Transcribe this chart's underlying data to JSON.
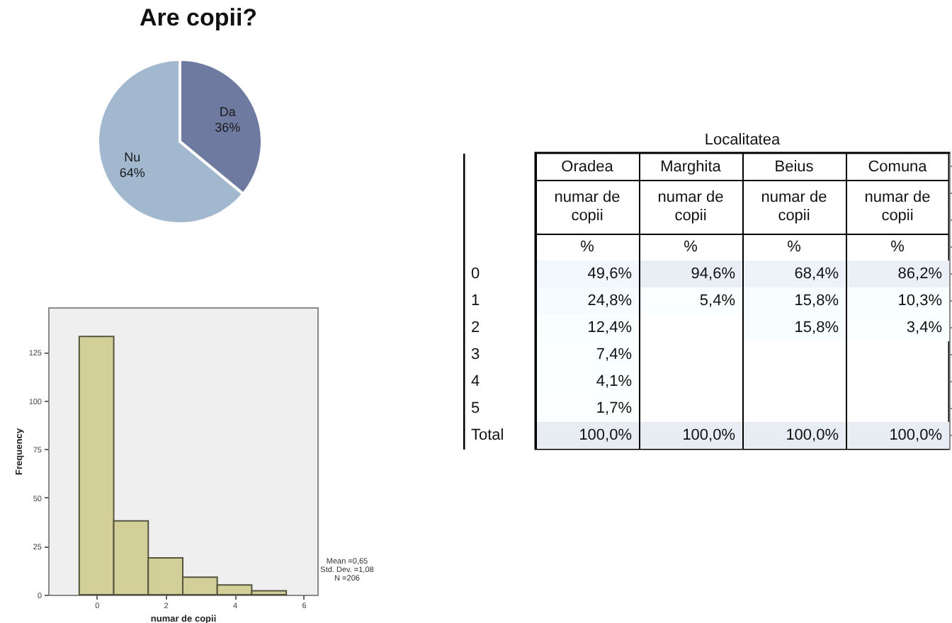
{
  "chart_data": [
    {
      "type": "pie",
      "title": "Are copii?",
      "categories": [
        "Da",
        "Nu"
      ],
      "values": [
        36,
        64
      ],
      "colors": [
        "#6f7aa1",
        "#a2b8cf"
      ],
      "value_labels": [
        "36%",
        "64%"
      ]
    },
    {
      "type": "histogram",
      "bins": [
        -0.5,
        0.5,
        1.5,
        2.5,
        3.5,
        4.5,
        5.5
      ],
      "values": [
        133,
        38,
        19,
        9,
        5,
        2
      ],
      "color": "#d3cf98",
      "xlabel": "numar de copii",
      "ylabel": "Frequency",
      "xlim": [
        -1.4,
        6.4
      ],
      "ylim": [
        0,
        148
      ],
      "xticks": [
        0,
        2,
        4,
        6
      ],
      "yticks": [
        0,
        25,
        50,
        75,
        100,
        125
      ],
      "annotations": [
        "Mean =0,65",
        "Std. Dev. =1,08",
        "N =206"
      ]
    },
    {
      "type": "heatmap",
      "title": "Localitatea",
      "categories": [
        "Oradea",
        "Marghita",
        "Beius",
        "Comuna"
      ],
      "y_categories": [
        "0",
        "1",
        "2",
        "3",
        "4",
        "5",
        "Total"
      ],
      "color": "#ffffff",
      "annotations": [
        "numar de copii",
        "%"
      ],
      "cells": [
        [
          49.6,
          94.6,
          68.4,
          86.2
        ],
        [
          24.8,
          5.4,
          15.8,
          10.3
        ],
        [
          12.4,
          null,
          15.8,
          3.4
        ],
        [
          7.4,
          null,
          null,
          null
        ],
        [
          4.1,
          null,
          null,
          null
        ],
        [
          1.7,
          null,
          null,
          null
        ],
        [
          100,
          100,
          100,
          100
        ]
      ],
      "cell_labels": [
        [
          "49,6%",
          "94,6%",
          "68,4%",
          "86,2%"
        ],
        [
          "24,8%",
          "5,4%",
          "15,8%",
          "10,3%"
        ],
        [
          "12,4%",
          null,
          "15,8%",
          "3,4%"
        ],
        [
          "7,4%",
          null,
          null,
          null
        ],
        [
          "4,1%",
          null,
          null,
          null
        ],
        [
          "1,7%",
          null,
          null,
          null
        ],
        [
          "100,0%",
          "100,0%",
          "100,0%",
          "100,0%"
        ]
      ]
    }
  ]
}
